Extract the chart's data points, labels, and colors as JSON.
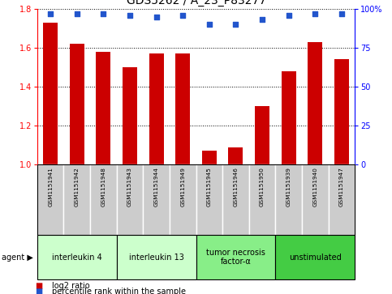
{
  "title": "GDS5262 / A_23_P83277",
  "samples": [
    "GSM1151941",
    "GSM1151942",
    "GSM1151948",
    "GSM1151943",
    "GSM1151944",
    "GSM1151949",
    "GSM1151945",
    "GSM1151946",
    "GSM1151950",
    "GSM1151939",
    "GSM1151940",
    "GSM1151947"
  ],
  "log2_ratio": [
    1.73,
    1.62,
    1.58,
    1.5,
    1.57,
    1.57,
    1.07,
    1.09,
    1.3,
    1.48,
    1.63,
    1.54
  ],
  "percentile": [
    97,
    97,
    97,
    96,
    95,
    96,
    90,
    90,
    93,
    96,
    97,
    97
  ],
  "bar_color": "#cc0000",
  "dot_color": "#2255cc",
  "ylim_left": [
    1.0,
    1.8
  ],
  "ylim_right": [
    0,
    100
  ],
  "yticks_left": [
    1.0,
    1.2,
    1.4,
    1.6,
    1.8
  ],
  "yticks_right": [
    0,
    25,
    50,
    75,
    100
  ],
  "ytick_labels_right": [
    "0",
    "25",
    "50",
    "75",
    "100%"
  ],
  "groups": [
    {
      "label": "interleukin 4",
      "start": 0,
      "end": 3,
      "color": "#ccffcc"
    },
    {
      "label": "interleukin 13",
      "start": 3,
      "end": 6,
      "color": "#ccffcc"
    },
    {
      "label": "tumor necrosis\nfactor-α",
      "start": 6,
      "end": 9,
      "color": "#88ee88"
    },
    {
      "label": "unstimulated",
      "start": 9,
      "end": 12,
      "color": "#44cc44"
    }
  ],
  "agent_label": "agent",
  "legend_bar_label": "log2 ratio",
  "legend_dot_label": "percentile rank within the sample",
  "background_color": "#ffffff",
  "plot_bg_color": "#ffffff",
  "sample_box_color": "#cccccc",
  "bar_width": 0.55,
  "dot_size": 22,
  "title_fontsize": 10,
  "tick_fontsize": 7,
  "sample_fontsize": 5.2,
  "group_fontsize": 7,
  "legend_fontsize": 7
}
